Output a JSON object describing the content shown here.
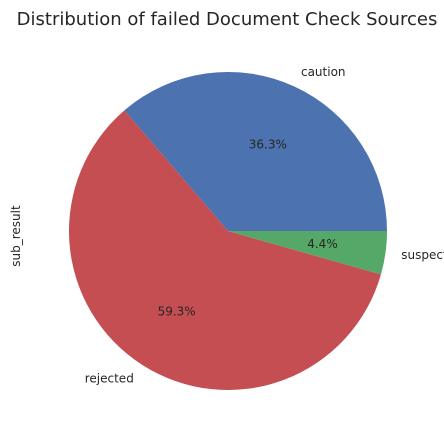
{
  "chart_data": {
    "type": "pie",
    "title": "Distribution of failed Document Check Sources",
    "ylabel": "sub_result",
    "slices": [
      {
        "label": "caution",
        "value": 36.3,
        "pct_label": "36.3%",
        "color": "#4c72b0"
      },
      {
        "label": "rejected",
        "value": 59.3,
        "pct_label": "59.3%",
        "color": "#c44e52"
      },
      {
        "label": "suspected",
        "value": 4.4,
        "pct_label": "4.4%",
        "color": "#55a868"
      }
    ],
    "start_angle_deg": 0,
    "direction": "counterclockwise"
  }
}
